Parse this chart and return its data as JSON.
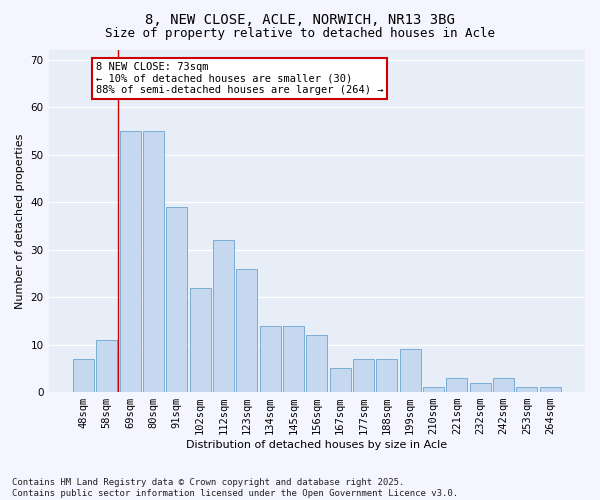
{
  "title1": "8, NEW CLOSE, ACLE, NORWICH, NR13 3BG",
  "title2": "Size of property relative to detached houses in Acle",
  "xlabel": "Distribution of detached houses by size in Acle",
  "ylabel": "Number of detached properties",
  "categories": [
    "48sqm",
    "58sqm",
    "69sqm",
    "80sqm",
    "91sqm",
    "102sqm",
    "112sqm",
    "123sqm",
    "134sqm",
    "145sqm",
    "156sqm",
    "167sqm",
    "177sqm",
    "188sqm",
    "199sqm",
    "210sqm",
    "221sqm",
    "232sqm",
    "242sqm",
    "253sqm",
    "264sqm"
  ],
  "values": [
    7,
    11,
    55,
    55,
    39,
    22,
    32,
    26,
    14,
    14,
    12,
    5,
    7,
    7,
    9,
    1,
    3,
    2,
    3,
    1,
    1
  ],
  "bar_color": "#c5d8f0",
  "bar_edge_color": "#7badd4",
  "annotation_text": "8 NEW CLOSE: 73sqm\n← 10% of detached houses are smaller (30)\n88% of semi-detached houses are larger (264) →",
  "annotation_box_color": "#ffffff",
  "annotation_box_edge": "#cc0000",
  "vline_color": "#cc0000",
  "ylim": [
    0,
    72
  ],
  "yticks": [
    0,
    10,
    20,
    30,
    40,
    50,
    60,
    70
  ],
  "bg_color": "#e8eef8",
  "fig_bg_color": "#f5f5ff",
  "footer": "Contains HM Land Registry data © Crown copyright and database right 2025.\nContains public sector information licensed under the Open Government Licence v3.0.",
  "title_fontsize": 10,
  "subtitle_fontsize": 9,
  "axis_label_fontsize": 8,
  "tick_fontsize": 7.5,
  "footer_fontsize": 6.5,
  "annotation_fontsize": 7.5
}
